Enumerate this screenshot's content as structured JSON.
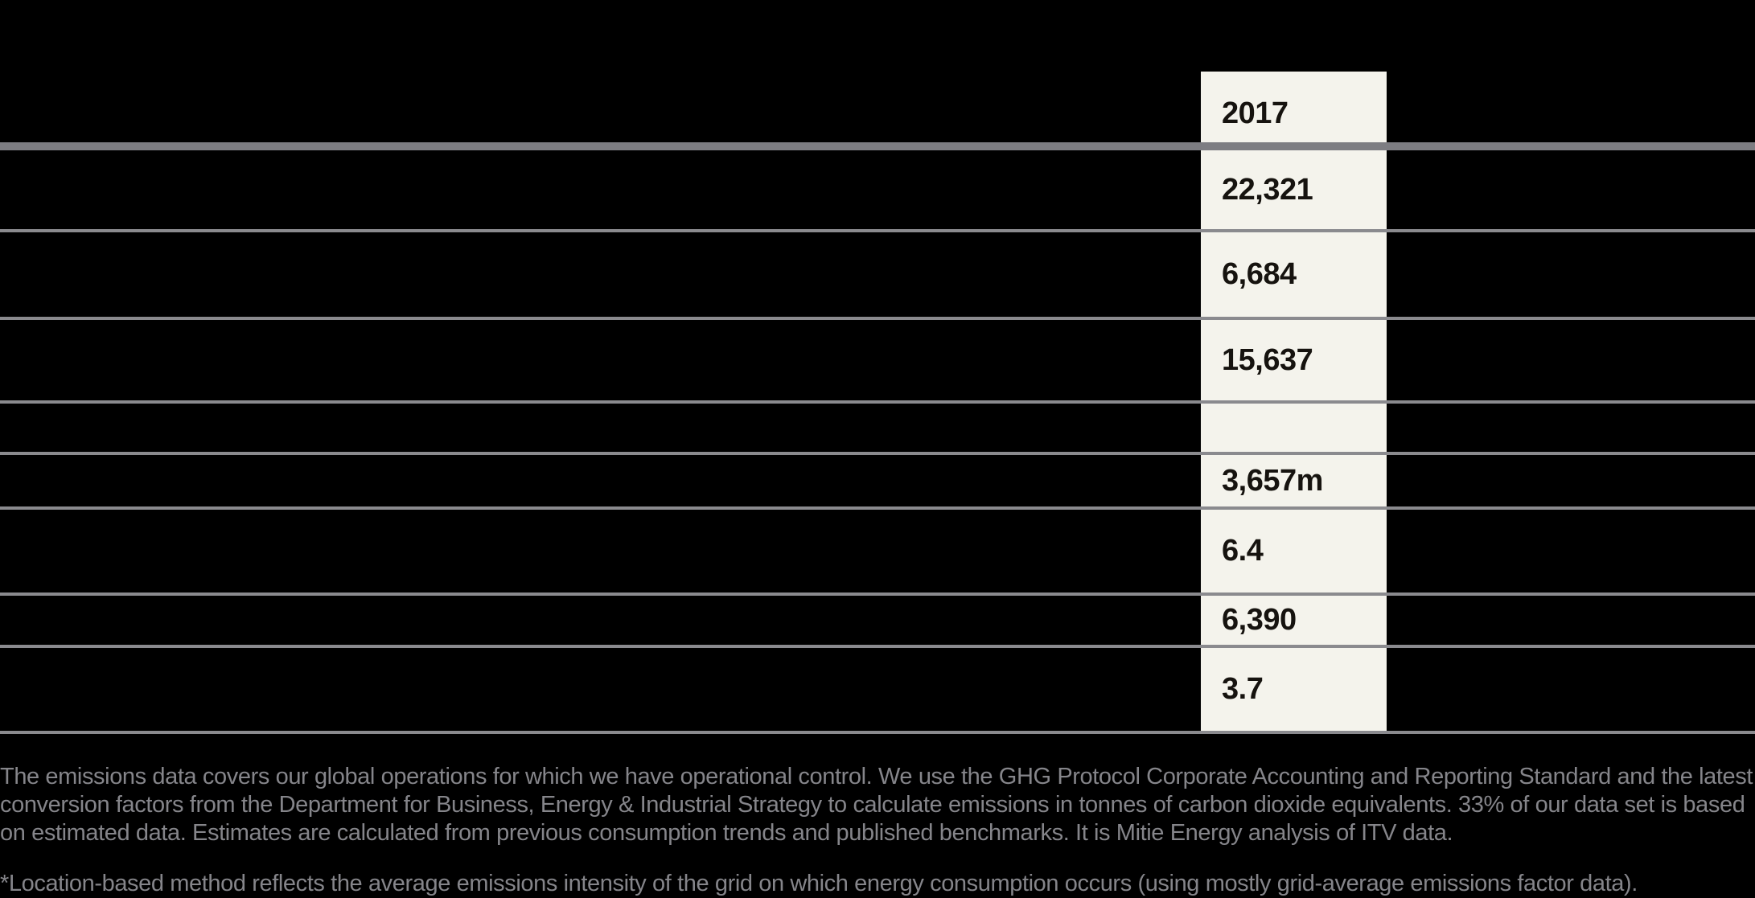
{
  "table": {
    "header": {
      "year": "2017"
    },
    "rows": [
      {
        "value": "22,321"
      },
      {
        "value": "6,684"
      },
      {
        "value": "15,637"
      },
      {
        "value": ""
      },
      {
        "value": "3,657m"
      },
      {
        "value": "6.4"
      },
      {
        "value": "6,390"
      },
      {
        "value": "3.7"
      }
    ]
  },
  "footnotes": {
    "paragraph1": "The emissions data covers our global operations for which we have operational control. We use the GHG Protocol Corporate Accounting and Reporting Standard and the latest conversion factors from the Department for Business, Energy & Industrial Strategy to calculate emissions in tonnes of carbon dioxide equivalents. 33% of our data set is based on estimated data. Estimates are calculated from previous consumption trends and published benchmarks. It is Mitie Energy analysis of ITV data.",
    "paragraph2": "*Location-based method reflects the average emissions intensity of the grid on which energy consumption occurs (using mostly grid-average emissions factor data)."
  },
  "colors": {
    "background": "#000000",
    "highlight_column": "#f4f3ec",
    "divider_thick": "#7d7d82",
    "divider_thin": "#8a8a8e",
    "value_text": "#16130f",
    "footnote_text": "#85858a"
  }
}
